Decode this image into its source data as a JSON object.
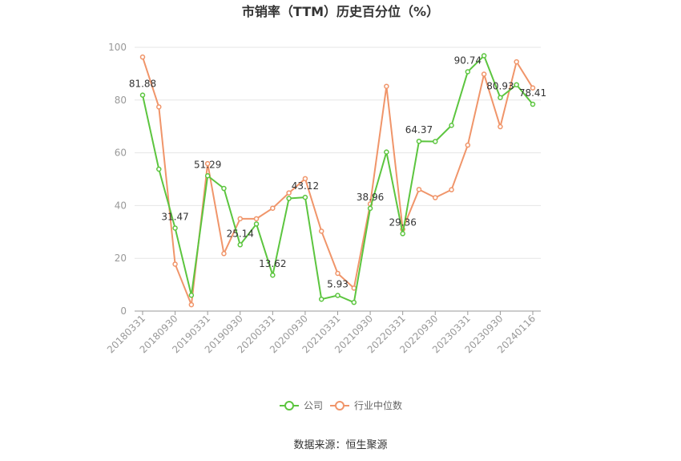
{
  "chart_data": {
    "type": "line",
    "title": "市销率（TTM）历史百分位（%）",
    "source": "数据来源：恒生聚源",
    "ylim": [
      0,
      100
    ],
    "y_ticks": [
      0,
      20,
      40,
      60,
      80,
      100
    ],
    "x": [
      "20180331",
      "20180630",
      "20180930",
      "20181231",
      "20190331",
      "20190630",
      "20190930",
      "20191231",
      "20200331",
      "20200630",
      "20200930",
      "20201231",
      "20210331",
      "20210630",
      "20210930",
      "20211231",
      "20220331",
      "20220630",
      "20220930",
      "20221231",
      "20230331",
      "20230630",
      "20230930",
      "20231231",
      "20240116"
    ],
    "x_tick_labels": [
      "20180331",
      "20180930",
      "20190331",
      "20190930",
      "20200331",
      "20200930",
      "20210331",
      "20210930",
      "20220331",
      "20220930",
      "20230331",
      "20230930",
      "20240116"
    ],
    "x_tick_indices": [
      0,
      2,
      4,
      6,
      8,
      10,
      12,
      14,
      16,
      18,
      20,
      22,
      24
    ],
    "series": [
      {
        "name": "公司",
        "color": "#5cc53f",
        "values": [
          81.88,
          53.8,
          31.47,
          6.0,
          51.29,
          46.5,
          25.14,
          33.0,
          13.62,
          42.7,
          43.12,
          4.5,
          5.93,
          3.3,
          38.96,
          60.3,
          29.36,
          64.37,
          64.3,
          70.4,
          90.74,
          96.8,
          80.93,
          85.8,
          78.41
        ],
        "labels": [
          "81.88",
          null,
          "31.47",
          null,
          "51.29",
          null,
          "25.14",
          null,
          "13.62",
          null,
          "43.12",
          null,
          "5.93",
          null,
          "38.96",
          null,
          "29.36",
          "64.37",
          null,
          null,
          "90.74",
          null,
          "80.93",
          null,
          "78.41"
        ]
      },
      {
        "name": "行业中位数",
        "color": "#f0956a",
        "values": [
          96.3,
          77.4,
          17.8,
          2.4,
          55.9,
          21.8,
          35.0,
          35.0,
          39.0,
          44.8,
          50.2,
          30.3,
          14.3,
          8.7,
          40.6,
          85.2,
          31.0,
          46.1,
          43.0,
          46.0,
          62.9,
          89.8,
          69.9,
          94.5,
          84.6
        ]
      }
    ],
    "legend_position": "bottom",
    "grid": true
  }
}
